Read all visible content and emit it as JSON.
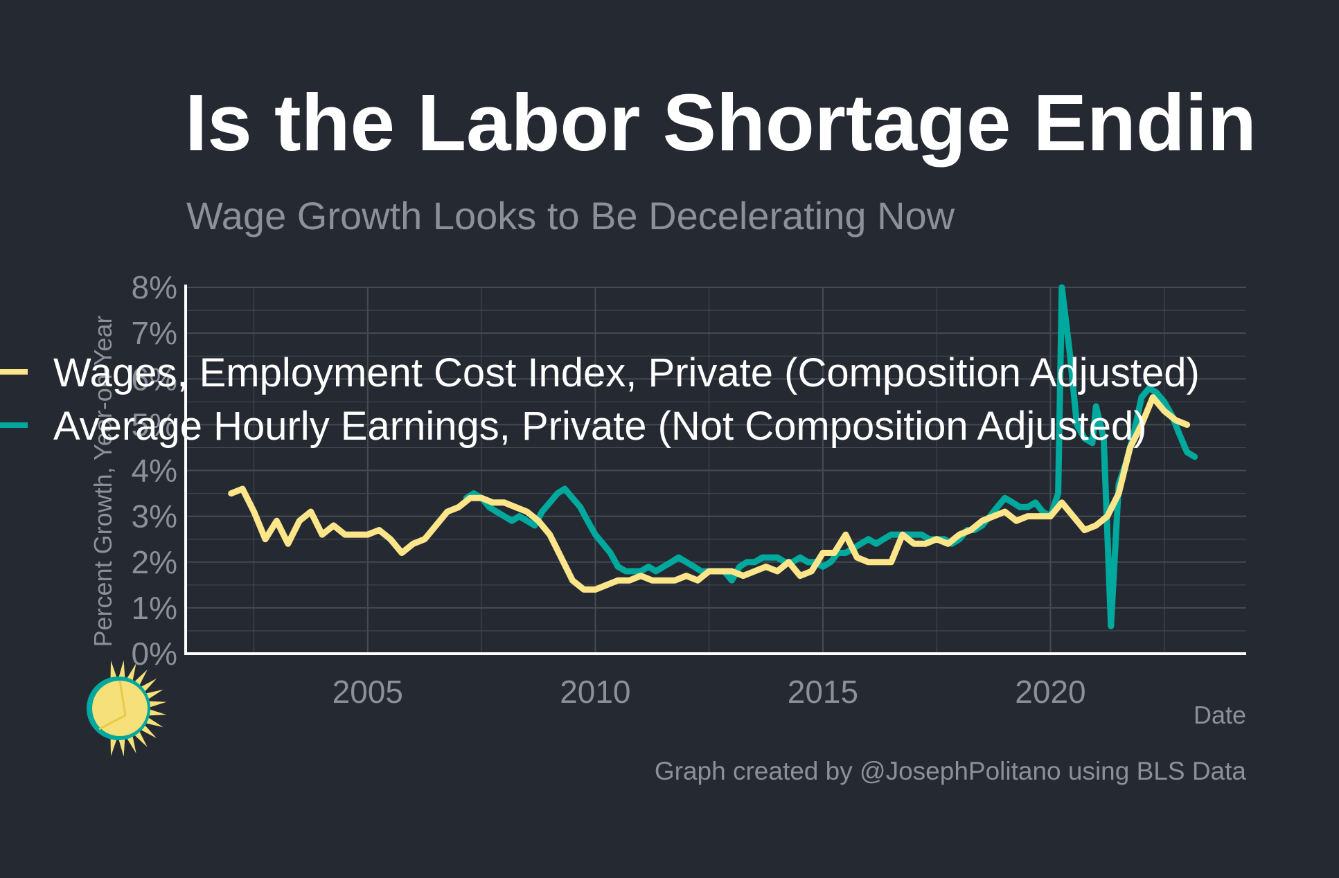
{
  "colors": {
    "background": "#252a32",
    "title": "#ffffff",
    "muted": "#8c9199",
    "grid": "#454b55",
    "axis": "#ffffff",
    "legend_text": "#ffffff",
    "wages_eci": "#fde68a",
    "ahe": "#00a99d",
    "logo_sun": "#f5e07a",
    "logo_ring": "#00a99d"
  },
  "header": {
    "title": "Is the Labor Shortage Endin",
    "subtitle": "Wage Growth Looks to Be Decelerating Now"
  },
  "footer": {
    "caption": "Graph created by @JosephPolitano using BLS Data"
  },
  "logo": {
    "icon": "sun-logo-icon"
  },
  "chart_data": {
    "type": "line",
    "xlabel": "Date",
    "ylabel": "Percent Growth, Year-on-Year",
    "xlim": [
      2001.0,
      2024.3
    ],
    "ylim": [
      0,
      8
    ],
    "x_ticks": [
      2005,
      2010,
      2015,
      2020
    ],
    "x_tick_labels": [
      "2005",
      "2010",
      "2015",
      "2020"
    ],
    "y_ticks": [
      0,
      1,
      2,
      3,
      4,
      5,
      6,
      7,
      8
    ],
    "y_tick_labels": [
      "0%",
      "1%",
      "2%",
      "3%",
      "4%",
      "5%",
      "6%",
      "7%",
      "8%"
    ],
    "grid": true,
    "legend_position": "top-left",
    "series": [
      {
        "name": "Wages, Employment Cost Index, Private (Composition Adjusted)",
        "color": "#fde68a",
        "points": [
          [
            2002.0,
            3.5
          ],
          [
            2002.25,
            3.6
          ],
          [
            2002.5,
            3.1
          ],
          [
            2002.75,
            2.5
          ],
          [
            2003.0,
            2.9
          ],
          [
            2003.25,
            2.4
          ],
          [
            2003.5,
            2.9
          ],
          [
            2003.75,
            3.1
          ],
          [
            2004.0,
            2.6
          ],
          [
            2004.25,
            2.8
          ],
          [
            2004.5,
            2.6
          ],
          [
            2004.75,
            2.6
          ],
          [
            2005.0,
            2.6
          ],
          [
            2005.25,
            2.7
          ],
          [
            2005.5,
            2.5
          ],
          [
            2005.75,
            2.2
          ],
          [
            2006.0,
            2.4
          ],
          [
            2006.25,
            2.5
          ],
          [
            2006.5,
            2.8
          ],
          [
            2006.75,
            3.1
          ],
          [
            2007.0,
            3.2
          ],
          [
            2007.25,
            3.4
          ],
          [
            2007.5,
            3.4
          ],
          [
            2007.75,
            3.3
          ],
          [
            2008.0,
            3.3
          ],
          [
            2008.25,
            3.2
          ],
          [
            2008.5,
            3.1
          ],
          [
            2008.75,
            2.9
          ],
          [
            2009.0,
            2.6
          ],
          [
            2009.25,
            2.1
          ],
          [
            2009.5,
            1.6
          ],
          [
            2009.75,
            1.4
          ],
          [
            2010.0,
            1.4
          ],
          [
            2010.25,
            1.5
          ],
          [
            2010.5,
            1.6
          ],
          [
            2010.75,
            1.6
          ],
          [
            2011.0,
            1.7
          ],
          [
            2011.25,
            1.6
          ],
          [
            2011.5,
            1.6
          ],
          [
            2011.75,
            1.6
          ],
          [
            2012.0,
            1.7
          ],
          [
            2012.25,
            1.6
          ],
          [
            2012.5,
            1.8
          ],
          [
            2012.75,
            1.8
          ],
          [
            2013.0,
            1.8
          ],
          [
            2013.25,
            1.7
          ],
          [
            2013.5,
            1.8
          ],
          [
            2013.75,
            1.9
          ],
          [
            2014.0,
            1.8
          ],
          [
            2014.25,
            2.0
          ],
          [
            2014.5,
            1.7
          ],
          [
            2014.75,
            1.8
          ],
          [
            2015.0,
            2.2
          ],
          [
            2015.25,
            2.2
          ],
          [
            2015.5,
            2.6
          ],
          [
            2015.75,
            2.1
          ],
          [
            2016.0,
            2.0
          ],
          [
            2016.25,
            2.0
          ],
          [
            2016.5,
            2.0
          ],
          [
            2016.75,
            2.6
          ],
          [
            2017.0,
            2.4
          ],
          [
            2017.25,
            2.4
          ],
          [
            2017.5,
            2.5
          ],
          [
            2017.75,
            2.4
          ],
          [
            2018.0,
            2.6
          ],
          [
            2018.25,
            2.7
          ],
          [
            2018.5,
            2.9
          ],
          [
            2018.75,
            3.0
          ],
          [
            2019.0,
            3.1
          ],
          [
            2019.25,
            2.9
          ],
          [
            2019.5,
            3.0
          ],
          [
            2019.75,
            3.0
          ],
          [
            2020.0,
            3.0
          ],
          [
            2020.25,
            3.3
          ],
          [
            2020.5,
            3.0
          ],
          [
            2020.75,
            2.7
          ],
          [
            2021.0,
            2.8
          ],
          [
            2021.25,
            3.0
          ],
          [
            2021.5,
            3.5
          ],
          [
            2021.75,
            4.5
          ],
          [
            2022.0,
            5.0
          ],
          [
            2022.25,
            5.6
          ],
          [
            2022.5,
            5.3
          ],
          [
            2022.75,
            5.1
          ],
          [
            2023.0,
            5.0
          ]
        ]
      },
      {
        "name": "Average Hourly Earnings, Private (Not Composition Adjusted)",
        "color": "#00a99d",
        "points": [
          [
            2007.17,
            3.4
          ],
          [
            2007.33,
            3.5
          ],
          [
            2007.5,
            3.4
          ],
          [
            2007.67,
            3.2
          ],
          [
            2007.83,
            3.1
          ],
          [
            2008.0,
            3.0
          ],
          [
            2008.17,
            2.9
          ],
          [
            2008.33,
            3.0
          ],
          [
            2008.5,
            2.9
          ],
          [
            2008.67,
            2.8
          ],
          [
            2008.83,
            3.1
          ],
          [
            2009.0,
            3.3
          ],
          [
            2009.17,
            3.5
          ],
          [
            2009.33,
            3.6
          ],
          [
            2009.5,
            3.4
          ],
          [
            2009.67,
            3.2
          ],
          [
            2009.83,
            2.9
          ],
          [
            2010.0,
            2.6
          ],
          [
            2010.17,
            2.4
          ],
          [
            2010.33,
            2.2
          ],
          [
            2010.5,
            1.9
          ],
          [
            2010.67,
            1.8
          ],
          [
            2010.83,
            1.8
          ],
          [
            2011.0,
            1.8
          ],
          [
            2011.17,
            1.9
          ],
          [
            2011.33,
            1.8
          ],
          [
            2011.5,
            1.9
          ],
          [
            2011.67,
            2.0
          ],
          [
            2011.83,
            2.1
          ],
          [
            2012.0,
            2.0
          ],
          [
            2012.17,
            1.9
          ],
          [
            2012.33,
            1.8
          ],
          [
            2012.5,
            1.8
          ],
          [
            2012.67,
            1.8
          ],
          [
            2012.83,
            1.8
          ],
          [
            2013.0,
            1.6
          ],
          [
            2013.17,
            1.9
          ],
          [
            2013.33,
            2.0
          ],
          [
            2013.5,
            2.0
          ],
          [
            2013.67,
            2.1
          ],
          [
            2013.83,
            2.1
          ],
          [
            2014.0,
            2.1
          ],
          [
            2014.17,
            2.0
          ],
          [
            2014.33,
            2.0
          ],
          [
            2014.5,
            2.1
          ],
          [
            2014.67,
            2.0
          ],
          [
            2014.83,
            2.0
          ],
          [
            2015.0,
            1.9
          ],
          [
            2015.17,
            2.0
          ],
          [
            2015.33,
            2.2
          ],
          [
            2015.5,
            2.2
          ],
          [
            2015.67,
            2.3
          ],
          [
            2015.83,
            2.4
          ],
          [
            2016.0,
            2.5
          ],
          [
            2016.17,
            2.4
          ],
          [
            2016.33,
            2.5
          ],
          [
            2016.5,
            2.6
          ],
          [
            2016.67,
            2.6
          ],
          [
            2016.83,
            2.6
          ],
          [
            2017.0,
            2.6
          ],
          [
            2017.17,
            2.6
          ],
          [
            2017.33,
            2.5
          ],
          [
            2017.5,
            2.5
          ],
          [
            2017.67,
            2.5
          ],
          [
            2017.83,
            2.4
          ],
          [
            2018.0,
            2.5
          ],
          [
            2018.17,
            2.7
          ],
          [
            2018.33,
            2.7
          ],
          [
            2018.5,
            2.8
          ],
          [
            2018.67,
            3.0
          ],
          [
            2018.83,
            3.2
          ],
          [
            2019.0,
            3.4
          ],
          [
            2019.17,
            3.3
          ],
          [
            2019.33,
            3.2
          ],
          [
            2019.5,
            3.2
          ],
          [
            2019.67,
            3.3
          ],
          [
            2019.83,
            3.1
          ],
          [
            2020.0,
            3.0
          ],
          [
            2020.17,
            3.5
          ],
          [
            2020.25,
            8.0
          ],
          [
            2020.42,
            6.6
          ],
          [
            2020.58,
            5.0
          ],
          [
            2020.75,
            4.7
          ],
          [
            2020.92,
            4.6
          ],
          [
            2021.0,
            5.4
          ],
          [
            2021.17,
            4.7
          ],
          [
            2021.33,
            0.6
          ],
          [
            2021.5,
            3.7
          ],
          [
            2021.67,
            4.2
          ],
          [
            2021.83,
            4.8
          ],
          [
            2022.0,
            5.6
          ],
          [
            2022.17,
            5.8
          ],
          [
            2022.33,
            5.7
          ],
          [
            2022.5,
            5.5
          ],
          [
            2022.67,
            5.2
          ],
          [
            2022.83,
            4.8
          ],
          [
            2023.0,
            4.4
          ],
          [
            2023.17,
            4.3
          ]
        ]
      }
    ]
  }
}
